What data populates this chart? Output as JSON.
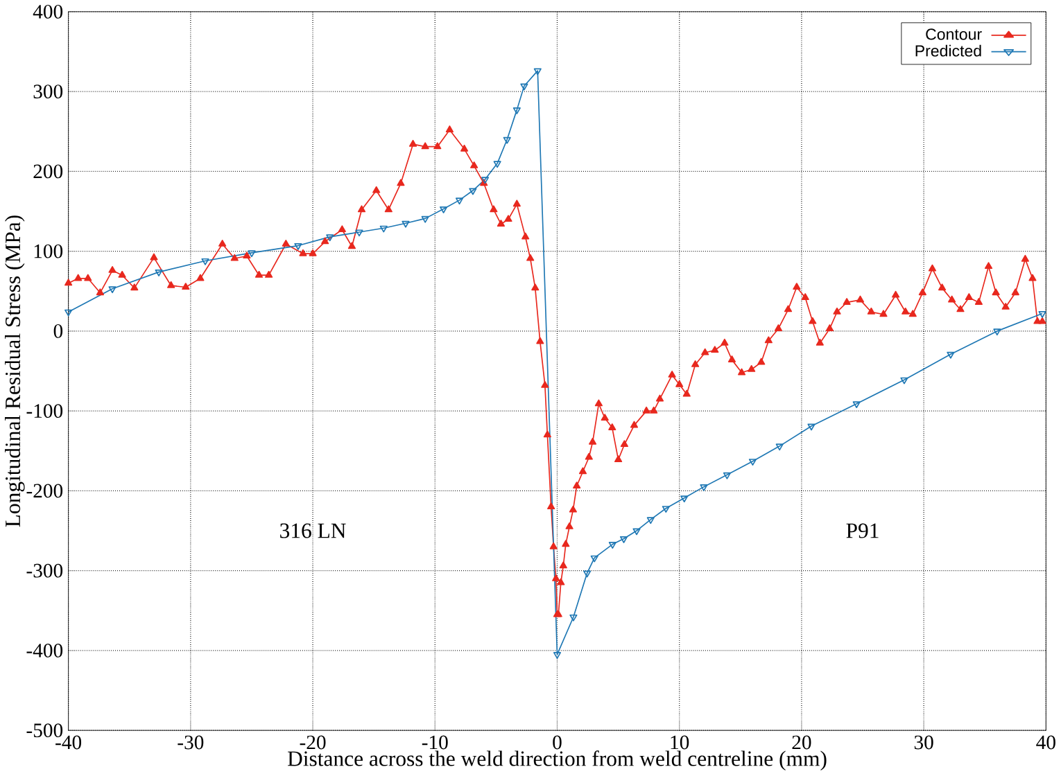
{
  "chart_data": {
    "type": "line",
    "xlabel": "Distance across the weld direction from weld centreline (mm)",
    "ylabel": "Longitudinal Residual Stress (MPa)",
    "xlim": [
      -40,
      40
    ],
    "ylim": [
      -500,
      400
    ],
    "xticks": [
      -40,
      -30,
      -20,
      -10,
      0,
      10,
      20,
      30,
      40
    ],
    "yticks": [
      -500,
      -400,
      -300,
      -200,
      -100,
      0,
      100,
      200,
      300,
      400
    ],
    "grid": true,
    "legend": "top right",
    "line_style": "solid",
    "annotations": [
      "316 LN",
      "P91"
    ],
    "series": [
      {
        "name": "Contour",
        "color": "#e8281e",
        "marker": "triangle",
        "x": [
          -40,
          -39.2,
          -38.4,
          -37.4,
          -36.4,
          -35.6,
          -34.6,
          -33,
          -31.6,
          -30.4,
          -29.2,
          -27.4,
          -26.4,
          -25.4,
          -24.4,
          -23.6,
          -22.2,
          -20.8,
          -20,
          -19,
          -17.6,
          -16.8,
          -16,
          -14.8,
          -13.8,
          -12.8,
          -11.8,
          -10.8,
          -9.8,
          -8.8,
          -7.6,
          -6.8,
          -6,
          -5.2,
          -4.6,
          -4,
          -3.3,
          -2.6,
          -2.2,
          -1.8,
          -1.4,
          -1,
          -0.8,
          -0.5,
          -0.3,
          -0.1,
          0,
          0.1,
          0.3,
          0.5,
          0.7,
          1,
          1.3,
          1.6,
          2.1,
          2.6,
          2.9,
          3.4,
          3.9,
          4.5,
          5,
          5.5,
          6.3,
          7.3,
          7.9,
          8.4,
          9.4,
          10,
          10.6,
          11.3,
          12.1,
          12.9,
          13.7,
          14.3,
          15.1,
          15.9,
          16.7,
          17.3,
          18.1,
          18.9,
          19.6,
          20.3,
          20.9,
          21.5,
          22.3,
          22.9,
          23.7,
          24.8,
          25.7,
          26.7,
          27.7,
          28.5,
          29.1,
          29.9,
          30.7,
          31.5,
          32.3,
          33,
          33.7,
          34.5,
          35.3,
          35.9,
          36.7,
          37.5,
          38.3,
          38.9,
          39.3,
          39.7
        ],
        "values": [
          60,
          66,
          66,
          48,
          76,
          70,
          54,
          92,
          57,
          55,
          66,
          109,
          91,
          94,
          70,
          70,
          109,
          97,
          97,
          112,
          127,
          106,
          152,
          176,
          152,
          185,
          234,
          231,
          231,
          252,
          228,
          207,
          185,
          152,
          134,
          140,
          159,
          118,
          91,
          54,
          -13,
          -68,
          -130,
          -220,
          -270,
          -310,
          -355,
          -355,
          -315,
          -294,
          -267,
          -245,
          -224,
          -194,
          -176,
          -158,
          -139,
          -91,
          -109,
          -121,
          -161,
          -142,
          -118,
          -100,
          -100,
          -85,
          -55,
          -67,
          -79,
          -42,
          -27,
          -24,
          -15,
          -36,
          -52,
          -48,
          -39,
          -12,
          3,
          27,
          55,
          42,
          12,
          -15,
          3,
          24,
          36,
          39,
          24,
          21,
          45,
          24,
          21,
          48,
          78,
          54,
          39,
          27,
          42,
          36,
          81,
          48,
          30,
          48,
          90,
          66,
          12,
          12
        ]
      },
      {
        "name": "Predicted",
        "color": "#1f78b4",
        "marker": "triangle-down",
        "x": [
          -40,
          -36.4,
          -32.6,
          -28.8,
          -25,
          -21.2,
          -18.6,
          -16.2,
          -14.2,
          -12.4,
          -10.8,
          -9.3,
          -8,
          -6.9,
          -5.9,
          -4.9,
          -4.1,
          -3.3,
          -2.7,
          -1.6,
          0,
          1.33,
          2.45,
          3.05,
          4.53,
          5.45,
          6.5,
          7.65,
          8.9,
          10.4,
          12,
          13.9,
          16,
          18.2,
          20.8,
          24.5,
          28.4,
          32.2,
          36,
          39.7
        ],
        "values": [
          24,
          53,
          74,
          88,
          98,
          107,
          118,
          124,
          129,
          135,
          141,
          153,
          164,
          176,
          190,
          210,
          240,
          277,
          307,
          326,
          -405,
          -358,
          -303,
          -284,
          -267,
          -260,
          -250,
          -236,
          -222,
          -209,
          -195,
          -180,
          -163,
          -144,
          -119,
          -91,
          -61,
          -29,
          0,
          22
        ]
      }
    ]
  }
}
